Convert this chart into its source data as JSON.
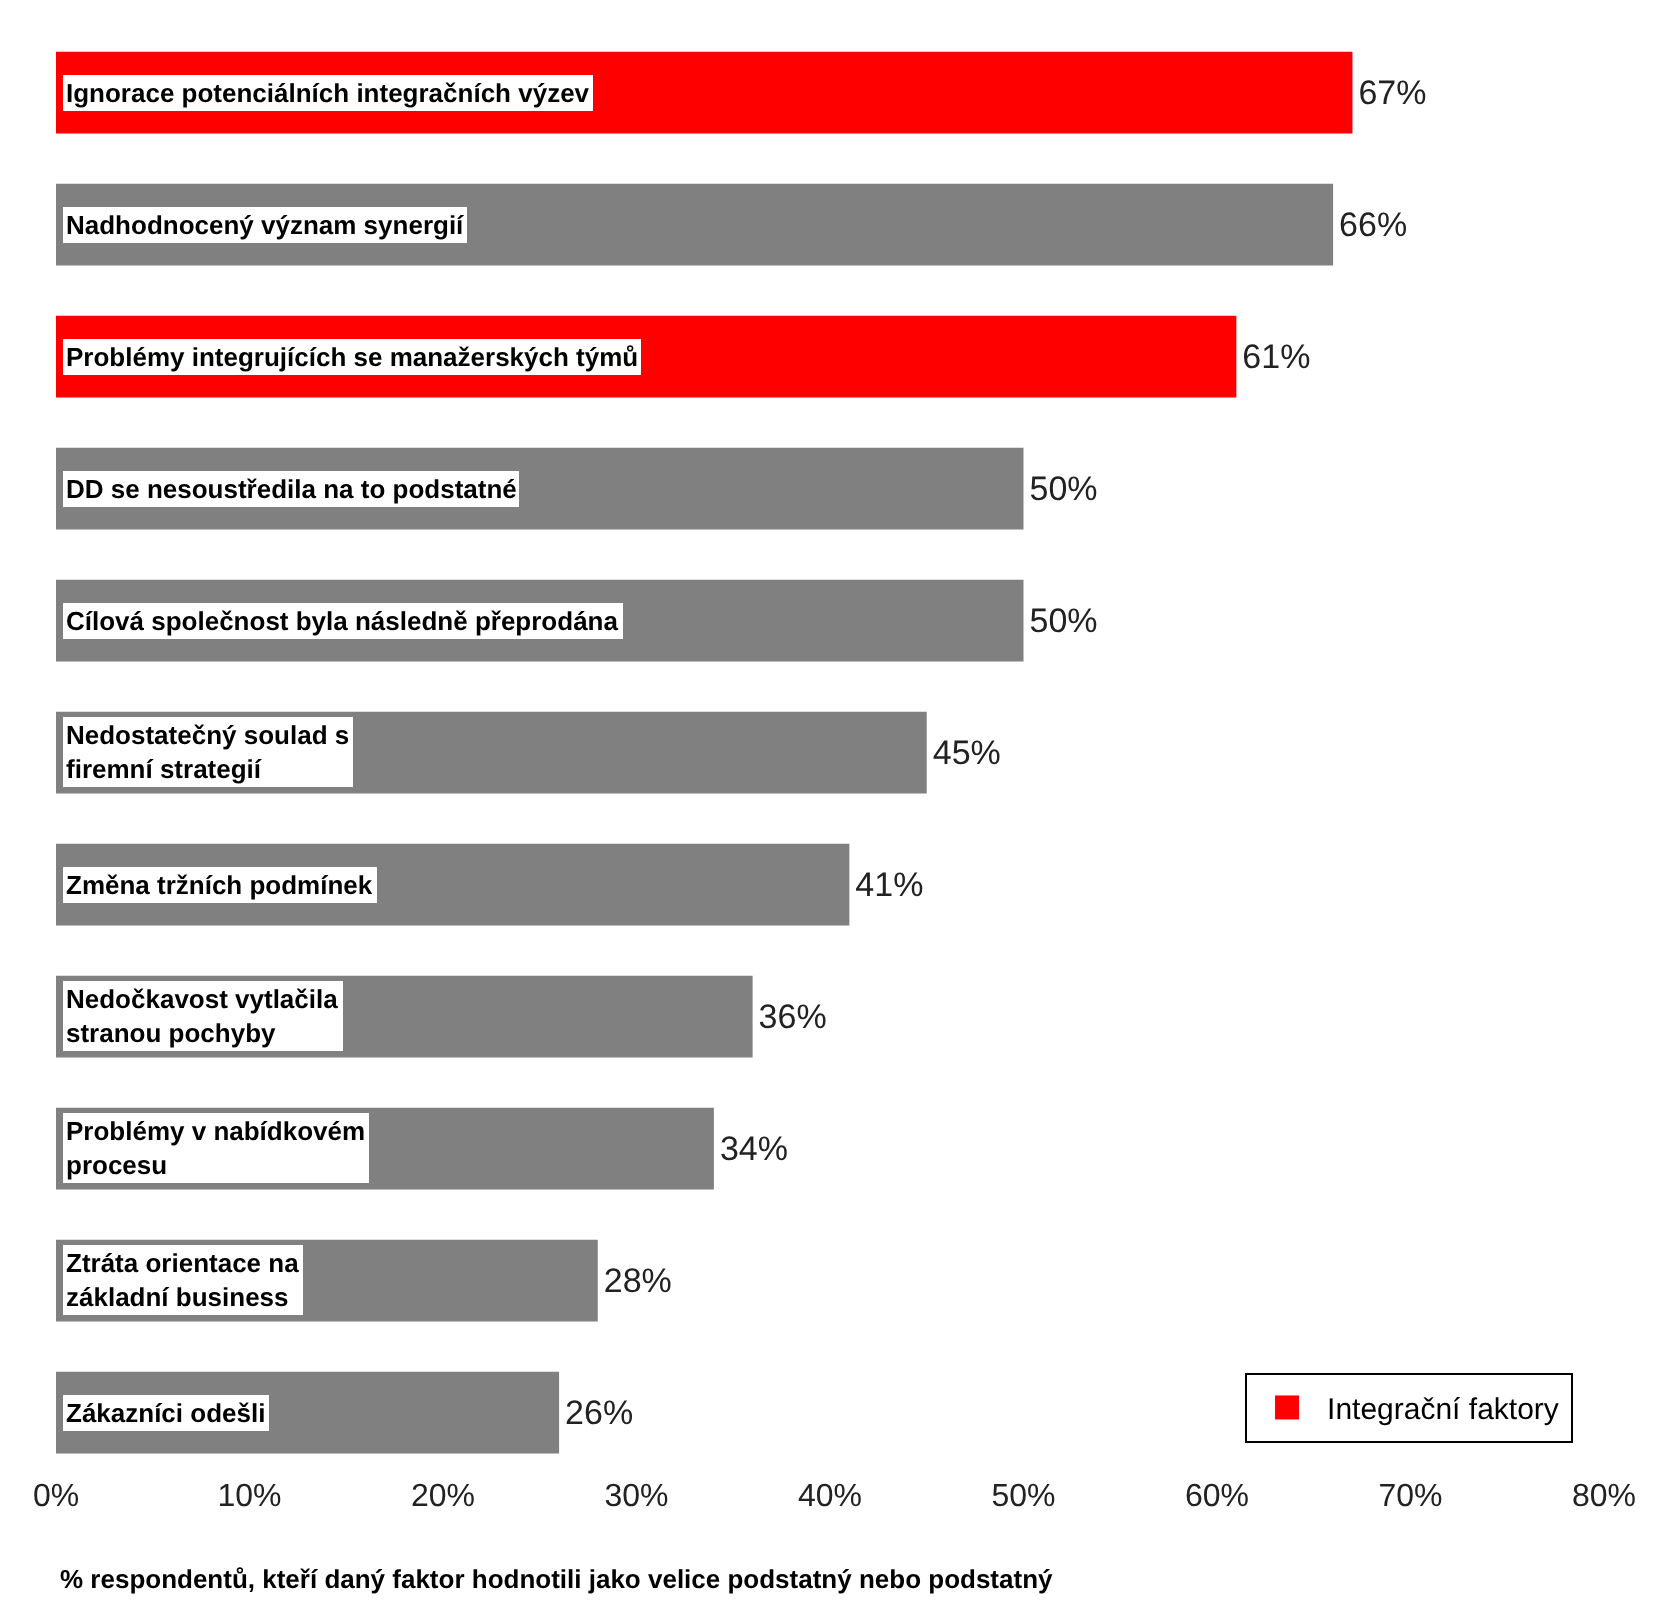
{
  "chart_data": {
    "type": "bar",
    "orientation": "horizontal",
    "categories": [
      "Ignorace potenciálních integračních výzev",
      "Nadhodnocený význam synergií",
      "Problémy integrujících se manažerských týmů",
      "DD se nesoustředila na to podstatné",
      "Cílová společnost byla následně přeprodána",
      "Nedostatečný soulad s firemní strategií",
      "Změna tržních podmínek",
      "Nedočkavost vytlačila stranou pochyby",
      "Problémy v nabídkovém procesu",
      "Ztráta orientace na základní business",
      "Zákazníci odešli"
    ],
    "series": [
      {
        "name": "Integrační faktory",
        "color": "#ff0000",
        "values": [
          67,
          null,
          61,
          null,
          null,
          null,
          null,
          null,
          null,
          null,
          null
        ],
        "value_labels": [
          "67%",
          null,
          "61%",
          null,
          null,
          null,
          null,
          null,
          null,
          null,
          null
        ]
      },
      {
        "color": "#808080",
        "values": [
          null,
          66,
          null,
          50,
          50,
          45,
          41,
          36,
          34,
          28,
          26
        ],
        "value_labels": [
          null,
          "66%",
          null,
          "50%",
          "50%",
          "45%",
          "41%",
          "36%",
          "34%",
          "28%",
          "26%"
        ]
      }
    ],
    "xlim": [
      0,
      80
    ],
    "xticks": [
      {
        "value": 0,
        "label": "0%"
      },
      {
        "value": 10,
        "label": "10%"
      },
      {
        "value": 20,
        "label": "20%"
      },
      {
        "value": 30,
        "label": "30%"
      },
      {
        "value": 40,
        "label": "40%"
      },
      {
        "value": 50,
        "label": "50%"
      },
      {
        "value": 60,
        "label": "60%"
      },
      {
        "value": 70,
        "label": "70%"
      },
      {
        "value": 80,
        "label": "80%"
      }
    ],
    "tick_labels": "x",
    "legend": "bottom right",
    "annotations": [
      "% respondentů, kteří daný faktor hodnotili jako velice podstatný nebo podstatný"
    ]
  }
}
